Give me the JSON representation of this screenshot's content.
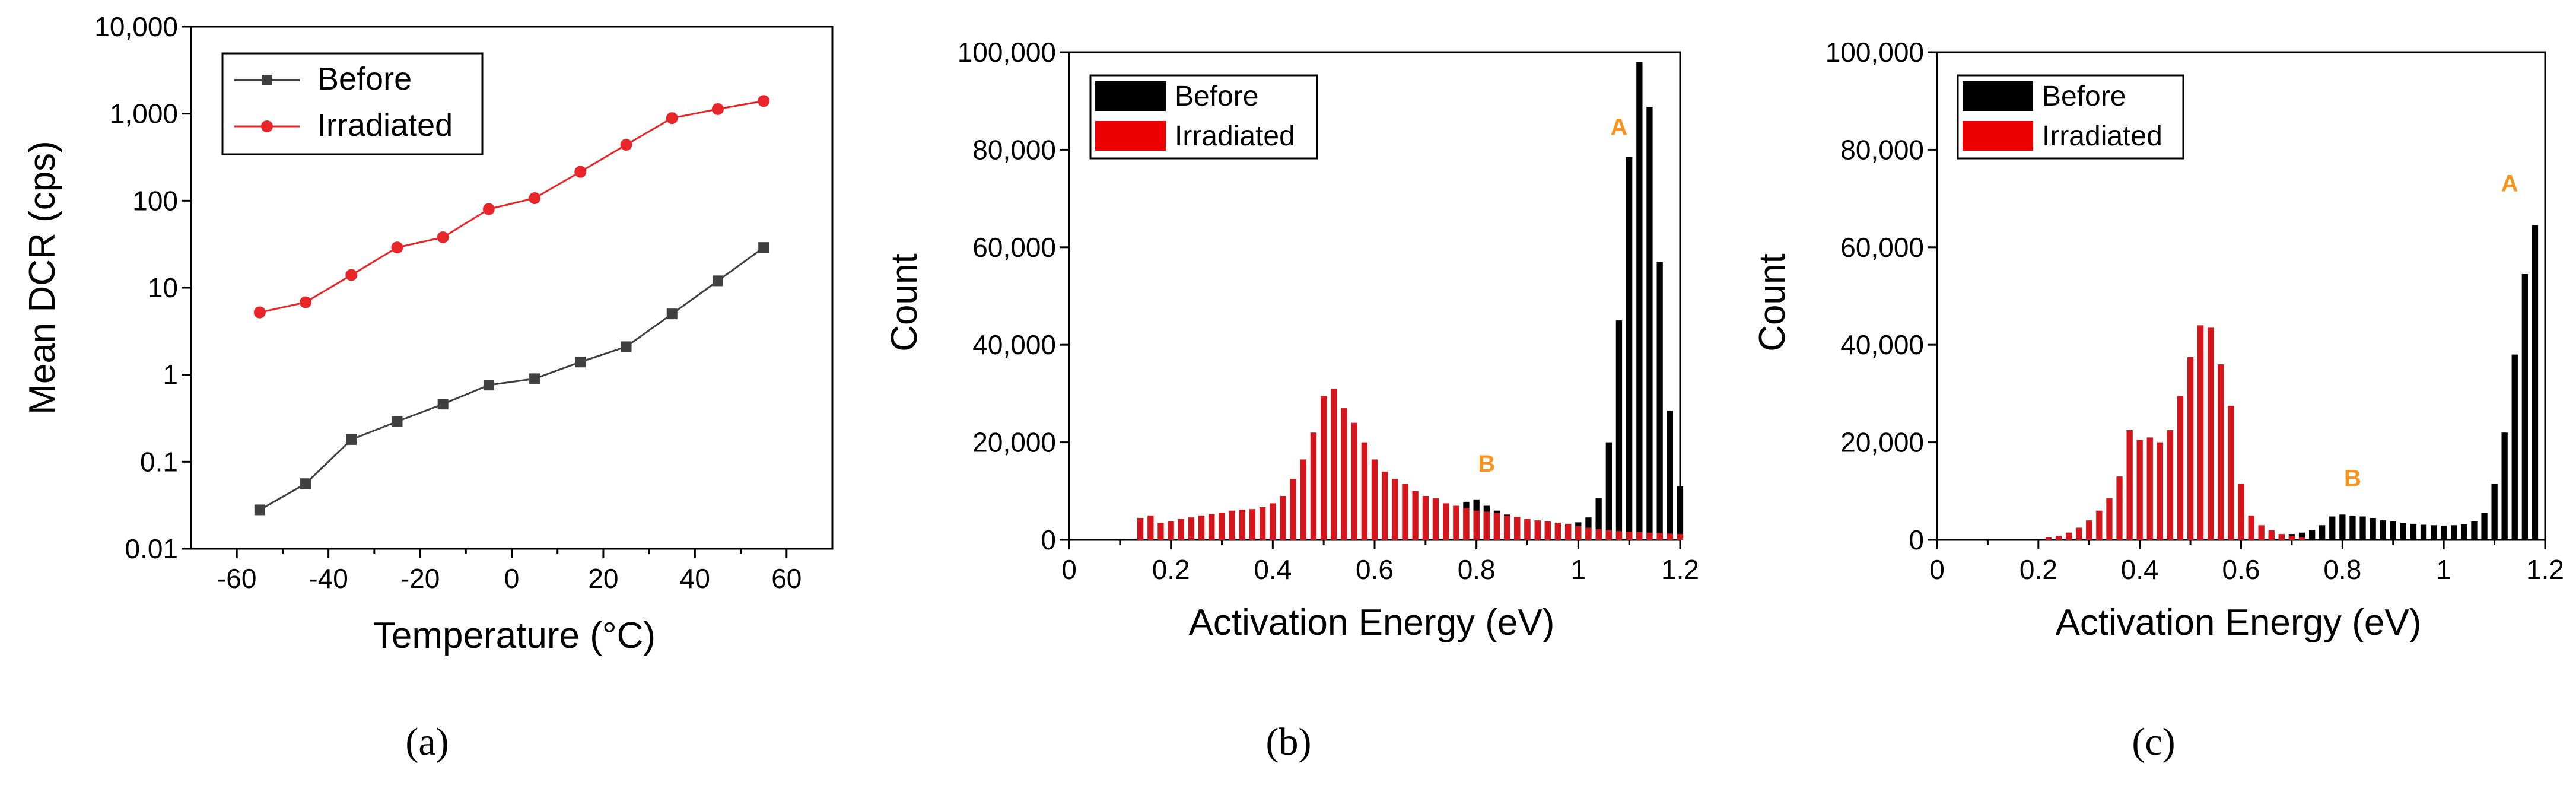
{
  "panels": [
    {
      "label": "(a)"
    },
    {
      "label": "(b)"
    },
    {
      "label": "(c)"
    }
  ],
  "chart_data": [
    {
      "type": "line",
      "xlabel": "Temperature (°C)",
      "ylabel": "Mean DCR (cps)",
      "yscale": "log",
      "xlim": [
        -70,
        70
      ],
      "ylim": [
        0.01,
        10000
      ],
      "xticks": [
        -60,
        -40,
        -20,
        0,
        20,
        40,
        60
      ],
      "xtick_labels": [
        "-60",
        "-40",
        "-20",
        "0",
        "20",
        "40",
        "60"
      ],
      "yticks": [
        0.01,
        0.1,
        1,
        10,
        100,
        1000,
        10000
      ],
      "ytick_labels": [
        "0.01",
        "0.1",
        "1",
        "10",
        "100",
        "1,000",
        "10,000"
      ],
      "x": [
        -55,
        -45,
        -35,
        -25,
        -15,
        -5,
        5,
        15,
        25,
        35,
        45,
        55
      ],
      "series": [
        {
          "name": "Before",
          "color": "#404040",
          "marker": "square",
          "values": [
            0.028,
            0.056,
            0.18,
            0.29,
            0.46,
            0.76,
            0.9,
            1.4,
            2.1,
            5.0,
            12,
            29
          ]
        },
        {
          "name": "Irradiated",
          "color": "#e8262a",
          "marker": "circle",
          "values": [
            5.2,
            6.8,
            14,
            29,
            38,
            80,
            107,
            215,
            440,
            890,
            1130,
            1400
          ]
        }
      ],
      "legend": "top-left",
      "grid": false
    },
    {
      "type": "bar",
      "xlabel": "Activation Energy (eV)",
      "ylabel": "Count",
      "xlim": [
        0,
        1.2
      ],
      "ylim": [
        0,
        100000
      ],
      "xticks": [
        0,
        0.2,
        0.4,
        0.6,
        0.8,
        1,
        1.2
      ],
      "xtick_labels": [
        "0",
        "0.2",
        "0.4",
        "0.6",
        "0.8",
        "1",
        "1.2"
      ],
      "yticks": [
        0,
        20000,
        40000,
        60000,
        80000,
        100000
      ],
      "ytick_labels": [
        "0",
        "20,000",
        "40,000",
        "60,000",
        "80,000",
        "100,000"
      ],
      "bin_width": 0.02,
      "series": [
        {
          "name": "Before",
          "color": "#000000",
          "x": [
            0.78,
            0.8,
            0.82,
            0.84,
            0.86,
            0.88,
            0.9,
            0.92,
            0.94,
            0.96,
            0.98,
            1.0,
            1.02,
            1.04,
            1.06,
            1.08,
            1.1,
            1.12,
            1.14,
            1.16,
            1.18,
            1.2
          ],
          "values": [
            7800,
            8300,
            7000,
            6000,
            5200,
            4700,
            4300,
            3900,
            3700,
            3500,
            3300,
            3600,
            4600,
            8500,
            20000,
            45000,
            78500,
            98000,
            88800,
            57000,
            26500,
            11000
          ]
        },
        {
          "name": "Irradiated",
          "color": "#d4151b",
          "x": [
            0.14,
            0.16,
            0.18,
            0.2,
            0.22,
            0.24,
            0.26,
            0.28,
            0.3,
            0.32,
            0.34,
            0.36,
            0.38,
            0.4,
            0.42,
            0.44,
            0.46,
            0.48,
            0.5,
            0.52,
            0.54,
            0.56,
            0.58,
            0.6,
            0.62,
            0.64,
            0.66,
            0.68,
            0.7,
            0.72,
            0.74,
            0.76,
            0.78,
            0.8,
            0.82,
            0.84,
            0.86,
            0.88,
            0.9,
            0.92,
            0.94,
            0.96,
            0.98,
            1.0,
            1.02,
            1.04,
            1.06,
            1.08,
            1.1,
            1.12,
            1.14,
            1.16,
            1.18,
            1.2
          ],
          "values": [
            4500,
            5000,
            3500,
            3800,
            4300,
            4600,
            5000,
            5300,
            5600,
            6000,
            6200,
            6300,
            6700,
            7500,
            9000,
            12500,
            16500,
            22000,
            29500,
            31000,
            27000,
            24000,
            20000,
            16500,
            14000,
            12500,
            11500,
            10000,
            9000,
            8500,
            7500,
            7000,
            6500,
            6000,
            5800,
            5500,
            5000,
            4700,
            4300,
            4000,
            3800,
            3500,
            3200,
            2800,
            2500,
            2200,
            2000,
            1800,
            1700,
            1600,
            1500,
            1400,
            1300,
            1200
          ]
        }
      ],
      "annotations": [
        {
          "text": "A",
          "x": 1.08,
          "y": 83000,
          "color": "#f7941d"
        },
        {
          "text": "B",
          "x": 0.82,
          "y": 14000,
          "color": "#f7941d"
        }
      ],
      "legend": "top-left",
      "grid": false
    },
    {
      "type": "bar",
      "xlabel": "Activation Energy (eV)",
      "ylabel": "Count",
      "xlim": [
        0,
        1.2
      ],
      "ylim": [
        0,
        100000
      ],
      "xticks": [
        0,
        0.2,
        0.4,
        0.6,
        0.8,
        1,
        1.2
      ],
      "xtick_labels": [
        "0",
        "0.2",
        "0.4",
        "0.6",
        "0.8",
        "1",
        "1.2"
      ],
      "yticks": [
        0,
        20000,
        40000,
        60000,
        80000,
        100000
      ],
      "ytick_labels": [
        "0",
        "20,000",
        "40,000",
        "60,000",
        "80,000",
        "100,000"
      ],
      "bin_width": 0.02,
      "series": [
        {
          "name": "Before",
          "color": "#000000",
          "x": [
            0.2,
            0.24,
            0.28,
            0.66,
            0.68,
            0.7,
            0.72,
            0.74,
            0.76,
            0.78,
            0.8,
            0.82,
            0.84,
            0.86,
            0.88,
            0.9,
            0.92,
            0.94,
            0.96,
            0.98,
            1.0,
            1.02,
            1.04,
            1.06,
            1.08,
            1.1,
            1.12,
            1.14,
            1.16,
            1.18
          ],
          "values": [
            200,
            300,
            500,
            900,
            1000,
            1200,
            1500,
            2000,
            3000,
            4800,
            5200,
            5000,
            4800,
            4500,
            4000,
            3800,
            3500,
            3300,
            3100,
            3000,
            2900,
            3000,
            3200,
            3800,
            5600,
            11500,
            22000,
            38000,
            54500,
            64500
          ]
        },
        {
          "name": "Irradiated",
          "color": "#d4151b",
          "x": [
            0.22,
            0.24,
            0.26,
            0.28,
            0.3,
            0.32,
            0.34,
            0.36,
            0.38,
            0.4,
            0.42,
            0.44,
            0.46,
            0.48,
            0.5,
            0.52,
            0.54,
            0.56,
            0.58,
            0.6,
            0.62,
            0.64,
            0.66,
            0.68,
            0.7,
            0.72
          ],
          "values": [
            500,
            800,
            1500,
            2500,
            4000,
            6000,
            8500,
            13000,
            22500,
            20500,
            21000,
            20000,
            22500,
            29500,
            37500,
            44000,
            43500,
            36000,
            27500,
            11500,
            5000,
            3000,
            2000,
            1200,
            800,
            500
          ]
        }
      ],
      "annotations": [
        {
          "text": "A",
          "x": 1.13,
          "y": 71500,
          "color": "#f7941d"
        },
        {
          "text": "B",
          "x": 0.82,
          "y": 11000,
          "color": "#f7941d"
        }
      ],
      "legend": "top-left",
      "grid": false
    }
  ]
}
